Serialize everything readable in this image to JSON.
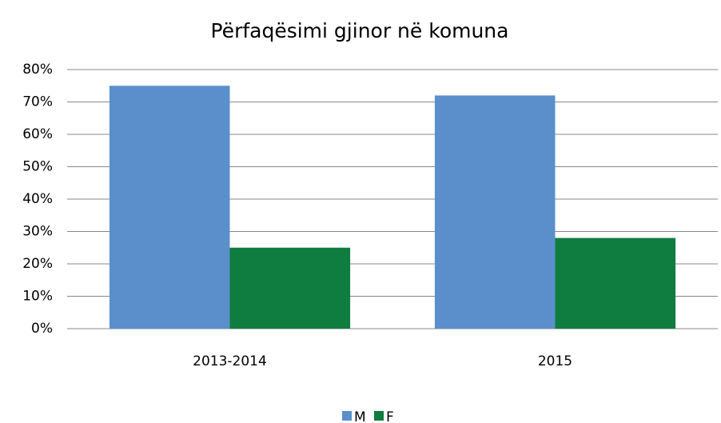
{
  "chart_data": {
    "type": "bar",
    "title": "Përfaqësimi gjinor në komuna",
    "categories": [
      "2013-2014",
      "2015"
    ],
    "series": [
      {
        "name": "M",
        "color": "#5b8fcb",
        "values": [
          75,
          72
        ]
      },
      {
        "name": "F",
        "color": "#0f7d3f",
        "values": [
          25,
          28
        ]
      }
    ],
    "ylim": [
      0,
      80
    ],
    "yticks": [
      {
        "value": 0,
        "label": "0%"
      },
      {
        "value": 10,
        "label": "10%"
      },
      {
        "value": 20,
        "label": "20%"
      },
      {
        "value": 30,
        "label": "30%"
      },
      {
        "value": 40,
        "label": "40%"
      },
      {
        "value": 50,
        "label": "50%"
      },
      {
        "value": 60,
        "label": "60%"
      },
      {
        "value": 70,
        "label": "70%"
      },
      {
        "value": 80,
        "label": "80%"
      }
    ],
    "grid": true,
    "legend": "bottom"
  }
}
